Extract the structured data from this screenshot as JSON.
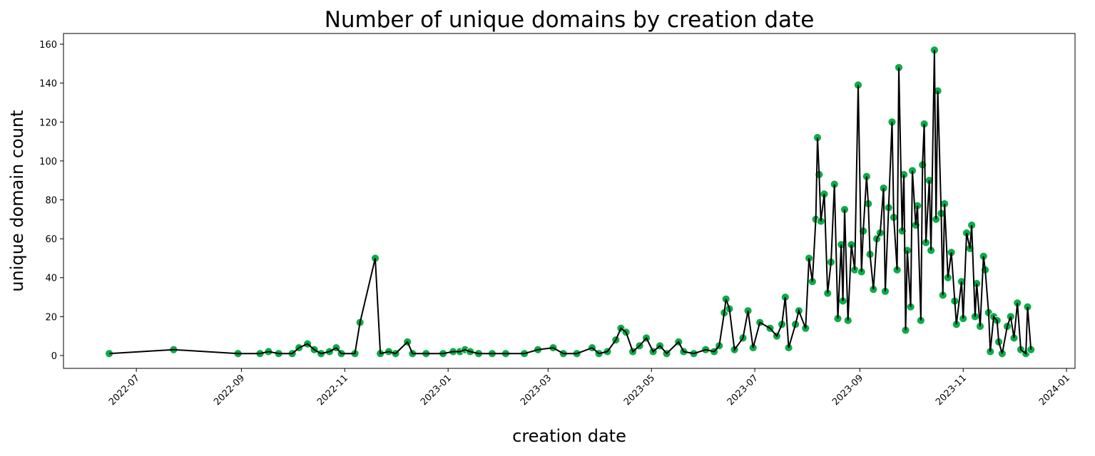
{
  "chart_data": {
    "type": "line",
    "title": "Number of unique domains by creation date",
    "xlabel": "creation date",
    "ylabel": "unique domain count",
    "x": [
      "2022-06-15",
      "2022-07-23",
      "2022-08-30",
      "2022-09-12",
      "2022-09-17",
      "2022-09-23",
      "2022-10-01",
      "2022-10-05",
      "2022-10-10",
      "2022-10-14",
      "2022-10-18",
      "2022-10-23",
      "2022-10-27",
      "2022-10-30",
      "2022-11-07",
      "2022-11-10",
      "2022-11-19",
      "2022-11-22",
      "2022-11-27",
      "2022-12-01",
      "2022-12-08",
      "2022-12-11",
      "2022-12-19",
      "2022-12-29",
      "2023-01-04",
      "2023-01-08",
      "2023-01-11",
      "2023-01-14",
      "2023-01-19",
      "2023-01-27",
      "2023-02-04",
      "2023-02-15",
      "2023-02-23",
      "2023-03-04",
      "2023-03-10",
      "2023-03-18",
      "2023-03-27",
      "2023-03-31",
      "2023-04-05",
      "2023-04-10",
      "2023-04-13",
      "2023-04-16",
      "2023-04-20",
      "2023-04-24",
      "2023-04-28",
      "2023-05-02",
      "2023-05-06",
      "2023-05-10",
      "2023-05-17",
      "2023-05-20",
      "2023-05-26",
      "2023-06-02",
      "2023-06-07",
      "2023-06-10",
      "2023-06-13",
      "2023-06-14",
      "2023-06-16",
      "2023-06-19",
      "2023-06-24",
      "2023-06-27",
      "2023-06-30",
      "2023-07-04",
      "2023-07-10",
      "2023-07-14",
      "2023-07-17",
      "2023-07-19",
      "2023-07-21",
      "2023-07-25",
      "2023-07-27",
      "2023-07-31",
      "2023-08-02",
      "2023-08-04",
      "2023-08-06",
      "2023-08-07",
      "2023-08-08",
      "2023-08-09",
      "2023-08-11",
      "2023-08-13",
      "2023-08-15",
      "2023-08-17",
      "2023-08-19",
      "2023-08-21",
      "2023-08-22",
      "2023-08-23",
      "2023-08-25",
      "2023-08-27",
      "2023-08-29",
      "2023-08-31",
      "2023-09-02",
      "2023-09-03",
      "2023-09-05",
      "2023-09-06",
      "2023-09-07",
      "2023-09-09",
      "2023-09-11",
      "2023-09-13",
      "2023-09-15",
      "2023-09-16",
      "2023-09-18",
      "2023-09-20",
      "2023-09-21",
      "2023-09-23",
      "2023-09-24",
      "2023-09-26",
      "2023-09-27",
      "2023-09-28",
      "2023-09-29",
      "2023-10-01",
      "2023-10-02",
      "2023-10-04",
      "2023-10-05",
      "2023-10-07",
      "2023-10-08",
      "2023-10-09",
      "2023-10-10",
      "2023-10-12",
      "2023-10-13",
      "2023-10-15",
      "2023-10-16",
      "2023-10-17",
      "2023-10-19",
      "2023-10-20",
      "2023-10-21",
      "2023-10-23",
      "2023-10-25",
      "2023-10-27",
      "2023-10-28",
      "2023-10-31",
      "2023-11-01",
      "2023-11-03",
      "2023-11-05",
      "2023-11-06",
      "2023-11-08",
      "2023-11-09",
      "2023-11-11",
      "2023-11-13",
      "2023-11-14",
      "2023-11-16",
      "2023-11-17",
      "2023-11-19",
      "2023-11-21",
      "2023-11-22",
      "2023-11-24",
      "2023-11-27",
      "2023-11-29",
      "2023-12-01",
      "2023-12-03",
      "2023-12-05",
      "2023-12-08",
      "2023-12-09",
      "2023-12-11"
    ],
    "series": [
      {
        "name": "unique domain count",
        "color": "#000000",
        "marker_color": "#0aad4a",
        "values": [
          1,
          3,
          1,
          1,
          2,
          1,
          1,
          4,
          6,
          3,
          1,
          2,
          4,
          1,
          1,
          17,
          50,
          1,
          2,
          1,
          7,
          1,
          1,
          1,
          2,
          2,
          3,
          2,
          1,
          1,
          1,
          1,
          3,
          4,
          1,
          1,
          4,
          1,
          2,
          8,
          14,
          12,
          2,
          5,
          9,
          2,
          5,
          1,
          7,
          2,
          1,
          3,
          2,
          5,
          22,
          29,
          24,
          3,
          9,
          23,
          4,
          17,
          14,
          10,
          16,
          30,
          4,
          16,
          23,
          14,
          50,
          38,
          70,
          112,
          93,
          69,
          83,
          32,
          48,
          88,
          19,
          57,
          28,
          75,
          18,
          57,
          44,
          139,
          43,
          64,
          92,
          78,
          52,
          34,
          60,
          63,
          86,
          33,
          76,
          120,
          71,
          44,
          148,
          64,
          93,
          13,
          54,
          25,
          95,
          67,
          77,
          18,
          98,
          119,
          58,
          90,
          54,
          157,
          70,
          136,
          73,
          31,
          78,
          40,
          53,
          28,
          16,
          38,
          19,
          63,
          55,
          67,
          20,
          37,
          15,
          51,
          44,
          22,
          2,
          20,
          18,
          7,
          1,
          15,
          20,
          9,
          27,
          3,
          1,
          25,
          3
        ]
      }
    ],
    "xlim": [
      "2022-05-19",
      "2024-01-06"
    ],
    "xticks": [
      "2022-07",
      "2022-09",
      "2022-11",
      "2023-01",
      "2023-03",
      "2023-05",
      "2023-07",
      "2023-09",
      "2023-11",
      "2024-01"
    ],
    "ylim": [
      -6.6,
      165.5
    ],
    "yticks": [
      0,
      20,
      40,
      60,
      80,
      100,
      120,
      140,
      160
    ]
  }
}
